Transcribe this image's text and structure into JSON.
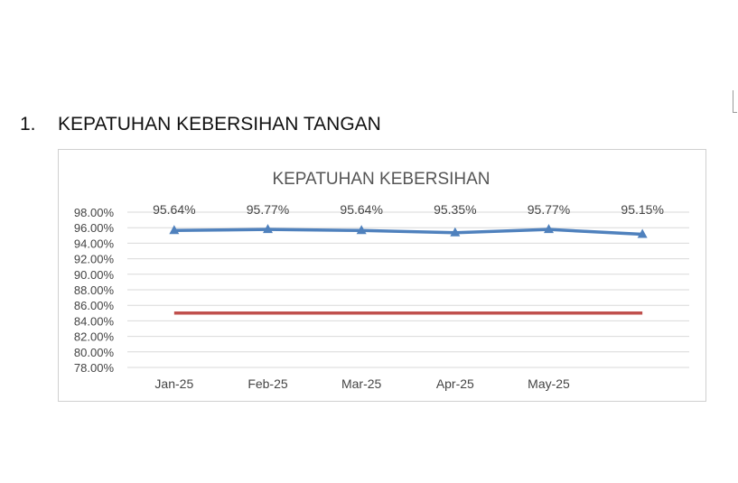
{
  "section": {
    "number": "1.",
    "title": "KEPATUHAN KEBERSIHAN TANGAN"
  },
  "chart_data": {
    "type": "line",
    "title": "KEPATUHAN KEBERSIHAN",
    "categories": [
      "Jan-25",
      "Feb-25",
      "Mar-25",
      "Apr-25",
      "May-25",
      ""
    ],
    "series": [
      {
        "values": [
          95.64,
          95.77,
          95.64,
          95.35,
          95.77,
          95.15
        ],
        "data_labels": [
          "95.64%",
          "95.77%",
          "95.64%",
          "95.35%",
          "95.77%",
          "95.15%"
        ],
        "color": "#4f81bd",
        "marker": "triangle"
      },
      {
        "values": [
          85,
          85,
          85,
          85,
          85,
          85
        ],
        "color": "#c0504d",
        "marker": "none"
      }
    ],
    "y_ticks": [
      "98.00%",
      "96.00%",
      "94.00%",
      "92.00%",
      "90.00%",
      "88.00%",
      "86.00%",
      "84.00%",
      "82.00%",
      "80.00%",
      "78.00%"
    ],
    "ylim": [
      78,
      98
    ],
    "grid": true,
    "legend": "none"
  }
}
